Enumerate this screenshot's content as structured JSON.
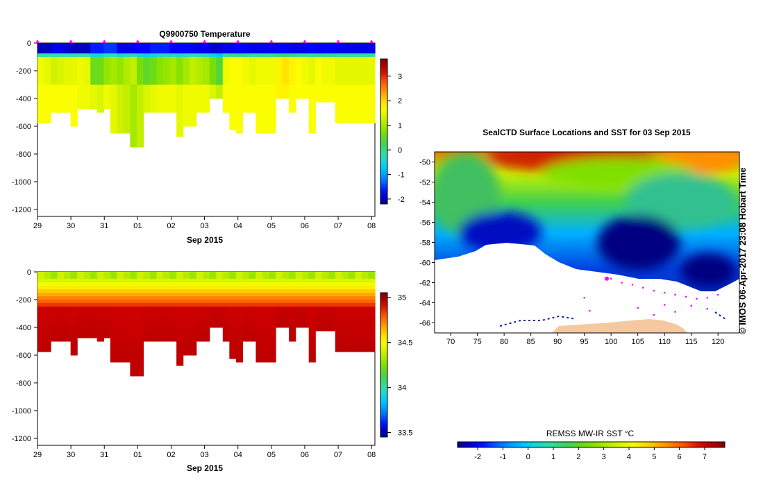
{
  "figure": {
    "credit": "© IMOS 06-Apr-2017 23:08 Hobart Time"
  },
  "colors": {
    "jet": [
      "#00008f",
      "#0000ff",
      "#0080ff",
      "#00c8ff",
      "#30e0b0",
      "#40d050",
      "#80e000",
      "#c8f000",
      "#ffff00",
      "#ffb000",
      "#ff6000",
      "#d00000",
      "#800000"
    ],
    "track": "#ff00ff",
    "land": "#f5c8a0"
  },
  "chart_data": [
    {
      "type": "heatmap",
      "title": "Q9900750  Temperature",
      "xlabel": "Sep 2015",
      "x_ticks": [
        "29",
        "30",
        "31",
        "01",
        "02",
        "03",
        "04",
        "05",
        "06",
        "07",
        "08"
      ],
      "x_tick_values": [
        0,
        1,
        2,
        3,
        4,
        5,
        6,
        7,
        8,
        9,
        10
      ],
      "xlim": [
        0,
        10.1
      ],
      "ylim": [
        -1250,
        0
      ],
      "y_ticks": [
        0,
        -200,
        -400,
        -600,
        -800,
        -1000,
        -1200
      ],
      "colorbar": {
        "min": -2.2,
        "max": 3.7,
        "ticks": [
          -2,
          -1,
          0,
          1,
          2,
          3
        ],
        "tick_labels": [
          "-2",
          "-1",
          "0",
          "1",
          "2",
          "3"
        ]
      },
      "profile_marker_x": [
        0,
        1,
        2,
        3,
        4,
        5,
        6,
        7,
        8,
        9,
        10
      ],
      "profiles": {
        "x": [
          0,
          0.2,
          0.4,
          0.6,
          0.8,
          1,
          1.2,
          1.4,
          1.6,
          1.8,
          2,
          2.2,
          2.4,
          2.6,
          2.8,
          3,
          3.2,
          3.4,
          3.6,
          3.8,
          4,
          4.2,
          4.4,
          4.6,
          4.8,
          5,
          5.2,
          5.4,
          5.6,
          5.8,
          6,
          6.2,
          6.4,
          6.6,
          6.8,
          7,
          7.2,
          7.4,
          7.6,
          7.8,
          8,
          8.2,
          8.4,
          8.6,
          8.8,
          9,
          9.2,
          9.4,
          9.6,
          9.8,
          10
        ],
        "depth": [
          560,
          570,
          480,
          480,
          480,
          590,
          470,
          460,
          460,
          500,
          470,
          650,
          650,
          650,
          730,
          730,
          500,
          500,
          490,
          490,
          500,
          660,
          580,
          580,
          500,
          500,
          400,
          400,
          500,
          620,
          630,
          500,
          500,
          650,
          650,
          650,
          400,
          400,
          500,
          400,
          400,
          650,
          420,
          420,
          420,
          560,
          560,
          560,
          560,
          560,
          560
        ],
        "surface": [
          -2,
          -2,
          -1.8,
          -1.8,
          -1.9,
          -2,
          -2,
          -2,
          -1.6,
          -1.6,
          -1.5,
          -1.5,
          -1.8,
          -1.8,
          -1.8,
          -1.7,
          -1.7,
          -1.6,
          -1.6,
          -1.6,
          -1.7,
          -1.7,
          -1.7,
          -1.8,
          -1.8,
          -1.8,
          -1.9,
          -1.9,
          -1.8,
          -1.8,
          -1.7,
          -1.7,
          -1.8,
          -1.8,
          -1.8,
          -1.8,
          -1.7,
          -1.7,
          -1.8,
          -1.8,
          -1.8,
          -1.7,
          -1.7,
          -1.7,
          -1.7,
          -1.8,
          -1.8,
          -1.8,
          -1.8,
          -1.8,
          -1.8
        ],
        "mid": [
          1.6,
          1.5,
          1.3,
          1.4,
          1.5,
          1.5,
          1.6,
          1.5,
          0.6,
          0.6,
          0.9,
          1,
          0.9,
          1.1,
          1.2,
          0.7,
          0.5,
          0.6,
          0.8,
          0.9,
          1,
          0.8,
          1,
          1.2,
          1.1,
          1,
          0.7,
          0.4,
          1.6,
          1.7,
          1.7,
          1.6,
          1.5,
          1.6,
          1.6,
          1.6,
          1.8,
          1.9,
          1.8,
          1.7,
          1.6,
          1.5,
          1.7,
          1.6,
          1.6,
          1.5,
          1.5,
          1.5,
          1.5,
          1.5,
          1.5
        ],
        "deep": [
          1.7,
          1.7,
          1.7,
          1.7,
          1.7,
          1.7,
          1.6,
          1.6,
          1.5,
          1.4,
          1.6,
          1.5,
          1.3,
          1.2,
          1,
          1.2,
          1.4,
          1.5,
          1.6,
          1.6,
          1.6,
          1.5,
          1.6,
          1.6,
          1.6,
          1.6,
          1.4,
          1.2,
          1.7,
          1.7,
          1.7,
          1.7,
          1.7,
          1.7,
          1.7,
          1.7,
          1.8,
          1.8,
          1.7,
          1.7,
          1.7,
          1.7,
          1.7,
          1.7,
          1.7,
          1.7,
          1.7,
          1.7,
          1.7,
          1.7,
          1.7
        ]
      }
    },
    {
      "type": "heatmap",
      "title": "",
      "xlabel": "Sep 2015",
      "x_ticks": [
        "29",
        "30",
        "31",
        "01",
        "02",
        "03",
        "04",
        "05",
        "06",
        "07",
        "08"
      ],
      "x_tick_values": [
        0,
        1,
        2,
        3,
        4,
        5,
        6,
        7,
        8,
        9,
        10
      ],
      "xlim": [
        0,
        10.1
      ],
      "ylim": [
        -1250,
        0
      ],
      "y_ticks": [
        0,
        -200,
        -400,
        -600,
        -800,
        -1000,
        -1200
      ],
      "colorbar": {
        "min": 33.45,
        "max": 35.05,
        "ticks": [
          33.5,
          34,
          34.5,
          35
        ],
        "tick_labels": [
          "33.5",
          "34",
          "34.5",
          "35"
        ]
      },
      "surface_value": 34.4,
      "deep_value": 34.9
    },
    {
      "type": "map",
      "title": "SealCTD Surface Locations and SST for 03 Sep 2015",
      "xlim": [
        67,
        124
      ],
      "ylim": [
        -67,
        -49
      ],
      "x_ticks": [
        70,
        75,
        80,
        85,
        90,
        95,
        100,
        105,
        110,
        115,
        120
      ],
      "x_tick_labels": [
        "70",
        "75",
        "80",
        "85",
        "90",
        "95",
        "100",
        "105",
        "110",
        "115",
        "120"
      ],
      "y_ticks": [
        -50,
        -52,
        -54,
        -56,
        -58,
        -60,
        -62,
        -64,
        -66
      ],
      "y_tick_labels": [
        "-50",
        "-52",
        "-54",
        "-56",
        "-58",
        "-60",
        "-62",
        "-64",
        "-66"
      ],
      "current_location": {
        "lon": 99.2,
        "lat": -61.6
      }
    },
    {
      "type": "colorbar",
      "label": "REMSS MW-IR SST °C",
      "min": -2.8,
      "max": 7.8,
      "ticks": [
        -2,
        -1,
        0,
        1,
        2,
        3,
        4,
        5,
        6,
        7
      ],
      "tick_labels": [
        "-2",
        "-1",
        "0",
        "1",
        "2",
        "3",
        "4",
        "5",
        "6",
        "7"
      ]
    }
  ]
}
